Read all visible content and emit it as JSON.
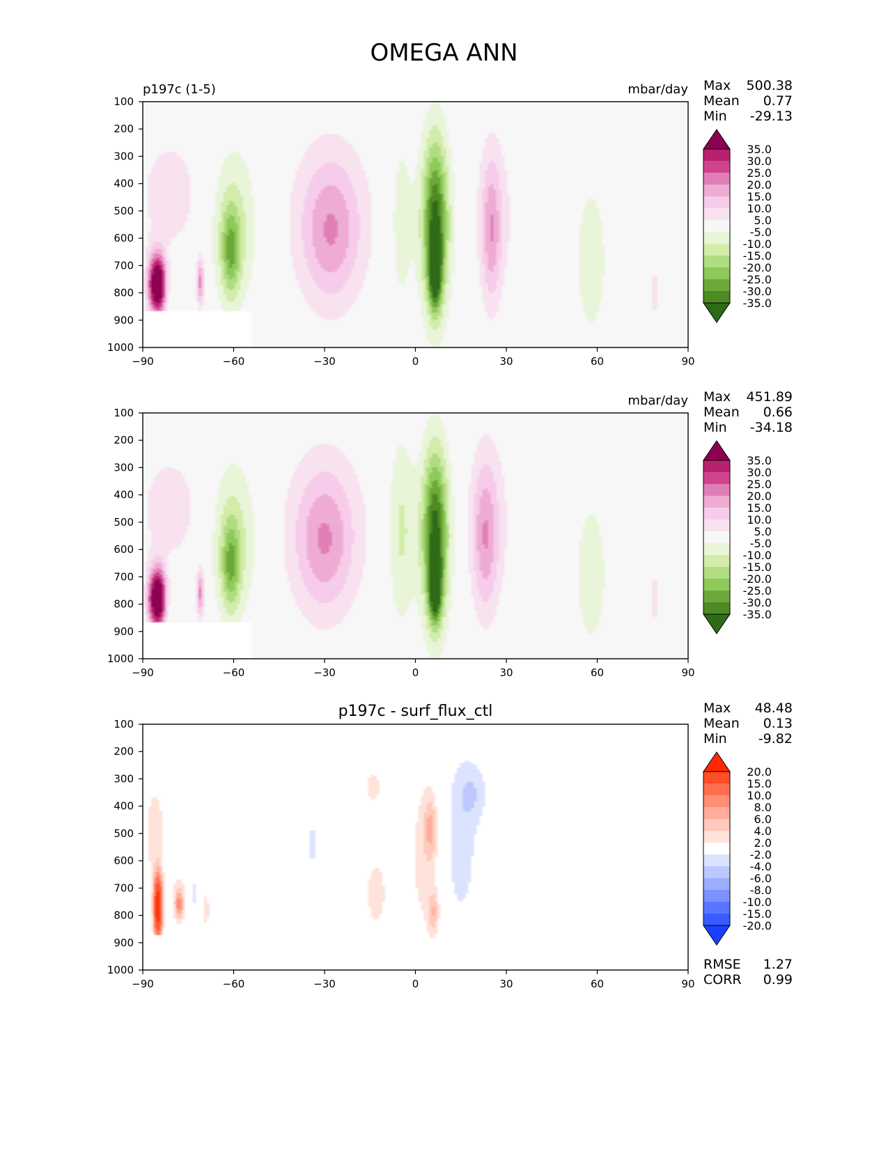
{
  "page_title": "OMEGA ANN",
  "colormaps": {
    "omega": {
      "labels": [
        "35.0",
        "30.0",
        "25.0",
        "20.0",
        "15.0",
        "10.0",
        "5.0",
        "-5.0",
        "-10.0",
        "-15.0",
        "-20.0",
        "-25.0",
        "-30.0",
        "-35.0"
      ],
      "colors": [
        "#8e0152",
        "#b8216e",
        "#d0438f",
        "#e07fb6",
        "#efacd3",
        "#f6ccea",
        "#f9e2f0",
        "#f7f7f7",
        "#e9f5d9",
        "#d2eca9",
        "#b0dc82",
        "#8fc95a",
        "#6da93a",
        "#4d8a23",
        "#2f6b17"
      ]
    },
    "diff": {
      "labels": [
        "20.0",
        "15.0",
        "10.0",
        "8.0",
        "6.0",
        "4.0",
        "2.0",
        "-2.0",
        "-4.0",
        "-6.0",
        "-8.0",
        "-10.0",
        "-15.0",
        "-20.0"
      ],
      "colors": [
        "#ff2a00",
        "#ff4d26",
        "#ff6e4c",
        "#ff8e73",
        "#ffad99",
        "#ffc9bb",
        "#ffe2da",
        "#ffffff",
        "#dce3ff",
        "#bcc8ff",
        "#9badff",
        "#7b92ff",
        "#5a76ff",
        "#3a5bff",
        "#1a40ff"
      ]
    }
  },
  "chart_data": [
    {
      "type": "heatmap",
      "title": "",
      "left_label": "p197c (1-5)",
      "units": "mbar/day",
      "xticks": [
        "−90",
        "−60",
        "−30",
        "0",
        "30",
        "60",
        "90"
      ],
      "yticks": [
        "100",
        "200",
        "300",
        "400",
        "500",
        "600",
        "700",
        "800",
        "900",
        "1000"
      ],
      "xlim": [
        -90,
        90
      ],
      "ylim": [
        1000,
        100
      ],
      "colormap": "omega",
      "stats": {
        "max": "500.38",
        "mean": "0.77",
        "min": "-29.13"
      },
      "features": [
        {
          "lat": -81,
          "lev": 440,
          "dlat": 11,
          "dlev": 230,
          "v": 8
        },
        {
          "lat": -60,
          "lev": 560,
          "dlat": 8,
          "dlev": 300,
          "v": -12
        },
        {
          "lat": -61,
          "lev": 650,
          "dlat": 3,
          "dlev": 160,
          "v": -18
        },
        {
          "lat": -28,
          "lev": 530,
          "dlat": 16,
          "dlev": 340,
          "v": 8
        },
        {
          "lat": -28,
          "lev": 580,
          "dlat": 9,
          "dlev": 250,
          "v": 13
        },
        {
          "lat": -5,
          "lev": 540,
          "dlat": 4,
          "dlev": 360,
          "v": -8
        },
        {
          "lat": 6.5,
          "lev": 540,
          "dlat": 6,
          "dlev": 340,
          "v": -15
        },
        {
          "lat": 6.5,
          "lev": 560,
          "dlat": 3.5,
          "dlev": 300,
          "v": -23
        },
        {
          "lat": 6.5,
          "lev": 720,
          "dlat": 1.8,
          "dlev": 120,
          "v": -34
        },
        {
          "lat": 26,
          "lev": 520,
          "dlat": 7,
          "dlev": 330,
          "v": 8
        },
        {
          "lat": 25,
          "lev": 580,
          "dlat": 3,
          "dlev": 260,
          "v": 13
        },
        {
          "lat": 58,
          "lev": 680,
          "dlat": 6,
          "dlev": 330,
          "v": -8
        },
        {
          "lat": 79,
          "lev": 800,
          "dlat": 1.5,
          "dlev": 100,
          "v": 8
        },
        {
          "lat": -86,
          "lev": 770,
          "dlat": 2.5,
          "dlev": 110,
          "v": 38
        },
        {
          "lat": -84,
          "lev": 770,
          "dlat": 2,
          "dlev": 110,
          "v": 23
        },
        {
          "lat": -71,
          "lev": 760,
          "dlat": 1.2,
          "dlev": 90,
          "v": 22
        }
      ],
      "mask": {
        "lat_max": -54,
        "lev_min": 865
      }
    },
    {
      "type": "heatmap",
      "title": "",
      "left_label": "",
      "units": "mbar/day",
      "xticks": [
        "−90",
        "−60",
        "−30",
        "0",
        "30",
        "60",
        "90"
      ],
      "yticks": [
        "100",
        "200",
        "300",
        "400",
        "500",
        "600",
        "700",
        "800",
        "900",
        "1000"
      ],
      "xlim": [
        -90,
        90
      ],
      "ylim": [
        1000,
        100
      ],
      "colormap": "omega",
      "stats": {
        "max": "451.89",
        "mean": "0.66",
        "min": "-34.18"
      },
      "features": [
        {
          "lat": -81,
          "lev": 450,
          "dlat": 11,
          "dlev": 220,
          "v": 8
        },
        {
          "lat": -60,
          "lev": 560,
          "dlat": 8,
          "dlev": 300,
          "v": -12
        },
        {
          "lat": -61,
          "lev": 660,
          "dlat": 3,
          "dlev": 160,
          "v": -18
        },
        {
          "lat": -30,
          "lev": 530,
          "dlat": 16,
          "dlev": 340,
          "v": 8
        },
        {
          "lat": -30,
          "lev": 570,
          "dlat": 9,
          "dlev": 250,
          "v": 13
        },
        {
          "lat": -5,
          "lev": 530,
          "dlat": 4.5,
          "dlev": 360,
          "v": -11
        },
        {
          "lat": 6.5,
          "lev": 540,
          "dlat": 6,
          "dlev": 340,
          "v": -15
        },
        {
          "lat": 6.5,
          "lev": 560,
          "dlat": 3.5,
          "dlev": 300,
          "v": -24
        },
        {
          "lat": 6.5,
          "lev": 740,
          "dlat": 1.8,
          "dlev": 110,
          "v": -36
        },
        {
          "lat": 24,
          "lev": 500,
          "dlat": 8,
          "dlev": 340,
          "v": 8
        },
        {
          "lat": 23,
          "lev": 560,
          "dlat": 4,
          "dlev": 270,
          "v": 13
        },
        {
          "lat": 58,
          "lev": 690,
          "dlat": 6,
          "dlev": 320,
          "v": -8
        },
        {
          "lat": 79,
          "lev": 780,
          "dlat": 1.5,
          "dlev": 110,
          "v": 8
        },
        {
          "lat": -86,
          "lev": 780,
          "dlat": 2.5,
          "dlev": 110,
          "v": 38
        },
        {
          "lat": -84,
          "lev": 780,
          "dlat": 2,
          "dlev": 110,
          "v": 23
        },
        {
          "lat": -71,
          "lev": 760,
          "dlat": 1.2,
          "dlev": 90,
          "v": 22
        }
      ],
      "mask": {
        "lat_max": -54,
        "lev_min": 865
      }
    },
    {
      "type": "heatmap",
      "title": "p197c - surf_flux_ctl",
      "left_label": "",
      "units": "",
      "xticks": [
        "−90",
        "−60",
        "−30",
        "0",
        "30",
        "60",
        "90"
      ],
      "yticks": [
        "100",
        "200",
        "300",
        "400",
        "500",
        "600",
        "700",
        "800",
        "900",
        "1000"
      ],
      "xlim": [
        -90,
        90
      ],
      "ylim": [
        1000,
        100
      ],
      "colormap": "diff",
      "stats": {
        "max": "48.48",
        "mean": "0.13",
        "min": "-9.82"
      },
      "rmse": "1.27",
      "corr": "0.99",
      "features": [
        {
          "lat": -86,
          "lev": 500,
          "dlat": 4,
          "dlev": 210,
          "v": 3
        },
        {
          "lat": -78,
          "lev": 740,
          "dlat": 3,
          "dlev": 100,
          "v": 3
        },
        {
          "lat": -78,
          "lev": 760,
          "dlat": 1.2,
          "dlev": 50,
          "v": 7
        },
        {
          "lat": -69,
          "lev": 780,
          "dlat": 1,
          "dlev": 90,
          "v": 3
        },
        {
          "lat": -85,
          "lev": 770,
          "dlat": 1.3,
          "dlev": 110,
          "v": 25
        },
        {
          "lat": -73,
          "lev": 720,
          "dlat": 1,
          "dlev": 60,
          "v": -3
        },
        {
          "lat": -34,
          "lev": 540,
          "dlat": 1.2,
          "dlev": 100,
          "v": -3
        },
        {
          "lat": -14,
          "lev": 330,
          "dlat": 3,
          "dlev": 70,
          "v": 3
        },
        {
          "lat": -13,
          "lev": 720,
          "dlat": 4,
          "dlev": 150,
          "v": 3
        },
        {
          "lat": 3,
          "lev": 580,
          "dlat": 5,
          "dlev": 310,
          "v": 3
        },
        {
          "lat": 5,
          "lev": 480,
          "dlat": 2,
          "dlev": 110,
          "v": 5
        },
        {
          "lat": 6,
          "lev": 790,
          "dlat": 1.8,
          "dlev": 80,
          "v": 5
        },
        {
          "lat": 15,
          "lev": 540,
          "dlat": 6,
          "dlev": 330,
          "v": -3
        },
        {
          "lat": 19,
          "lev": 350,
          "dlat": 5,
          "dlev": 110,
          "v": -3
        }
      ],
      "mask": {
        "lat_max": -67,
        "lev_min": 870
      }
    }
  ]
}
